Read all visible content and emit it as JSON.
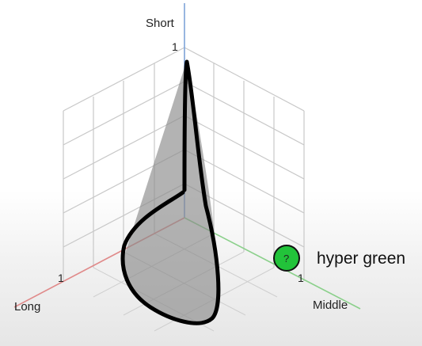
{
  "diagram": {
    "axes": {
      "short": {
        "label": "Short",
        "tick": "1",
        "color": "#7ea3d9"
      },
      "long": {
        "label": "Long",
        "tick": "1",
        "color": "#e08a8a"
      },
      "middle": {
        "label": "Middle",
        "tick": "1",
        "color": "#8bd08b"
      }
    },
    "callout": {
      "symbol": "?",
      "label": "hyper green",
      "color": "#22c33a"
    },
    "grid_color": "#c8c8c8",
    "cone_fill": "#8a8a8a",
    "curve_color": "#000000"
  }
}
